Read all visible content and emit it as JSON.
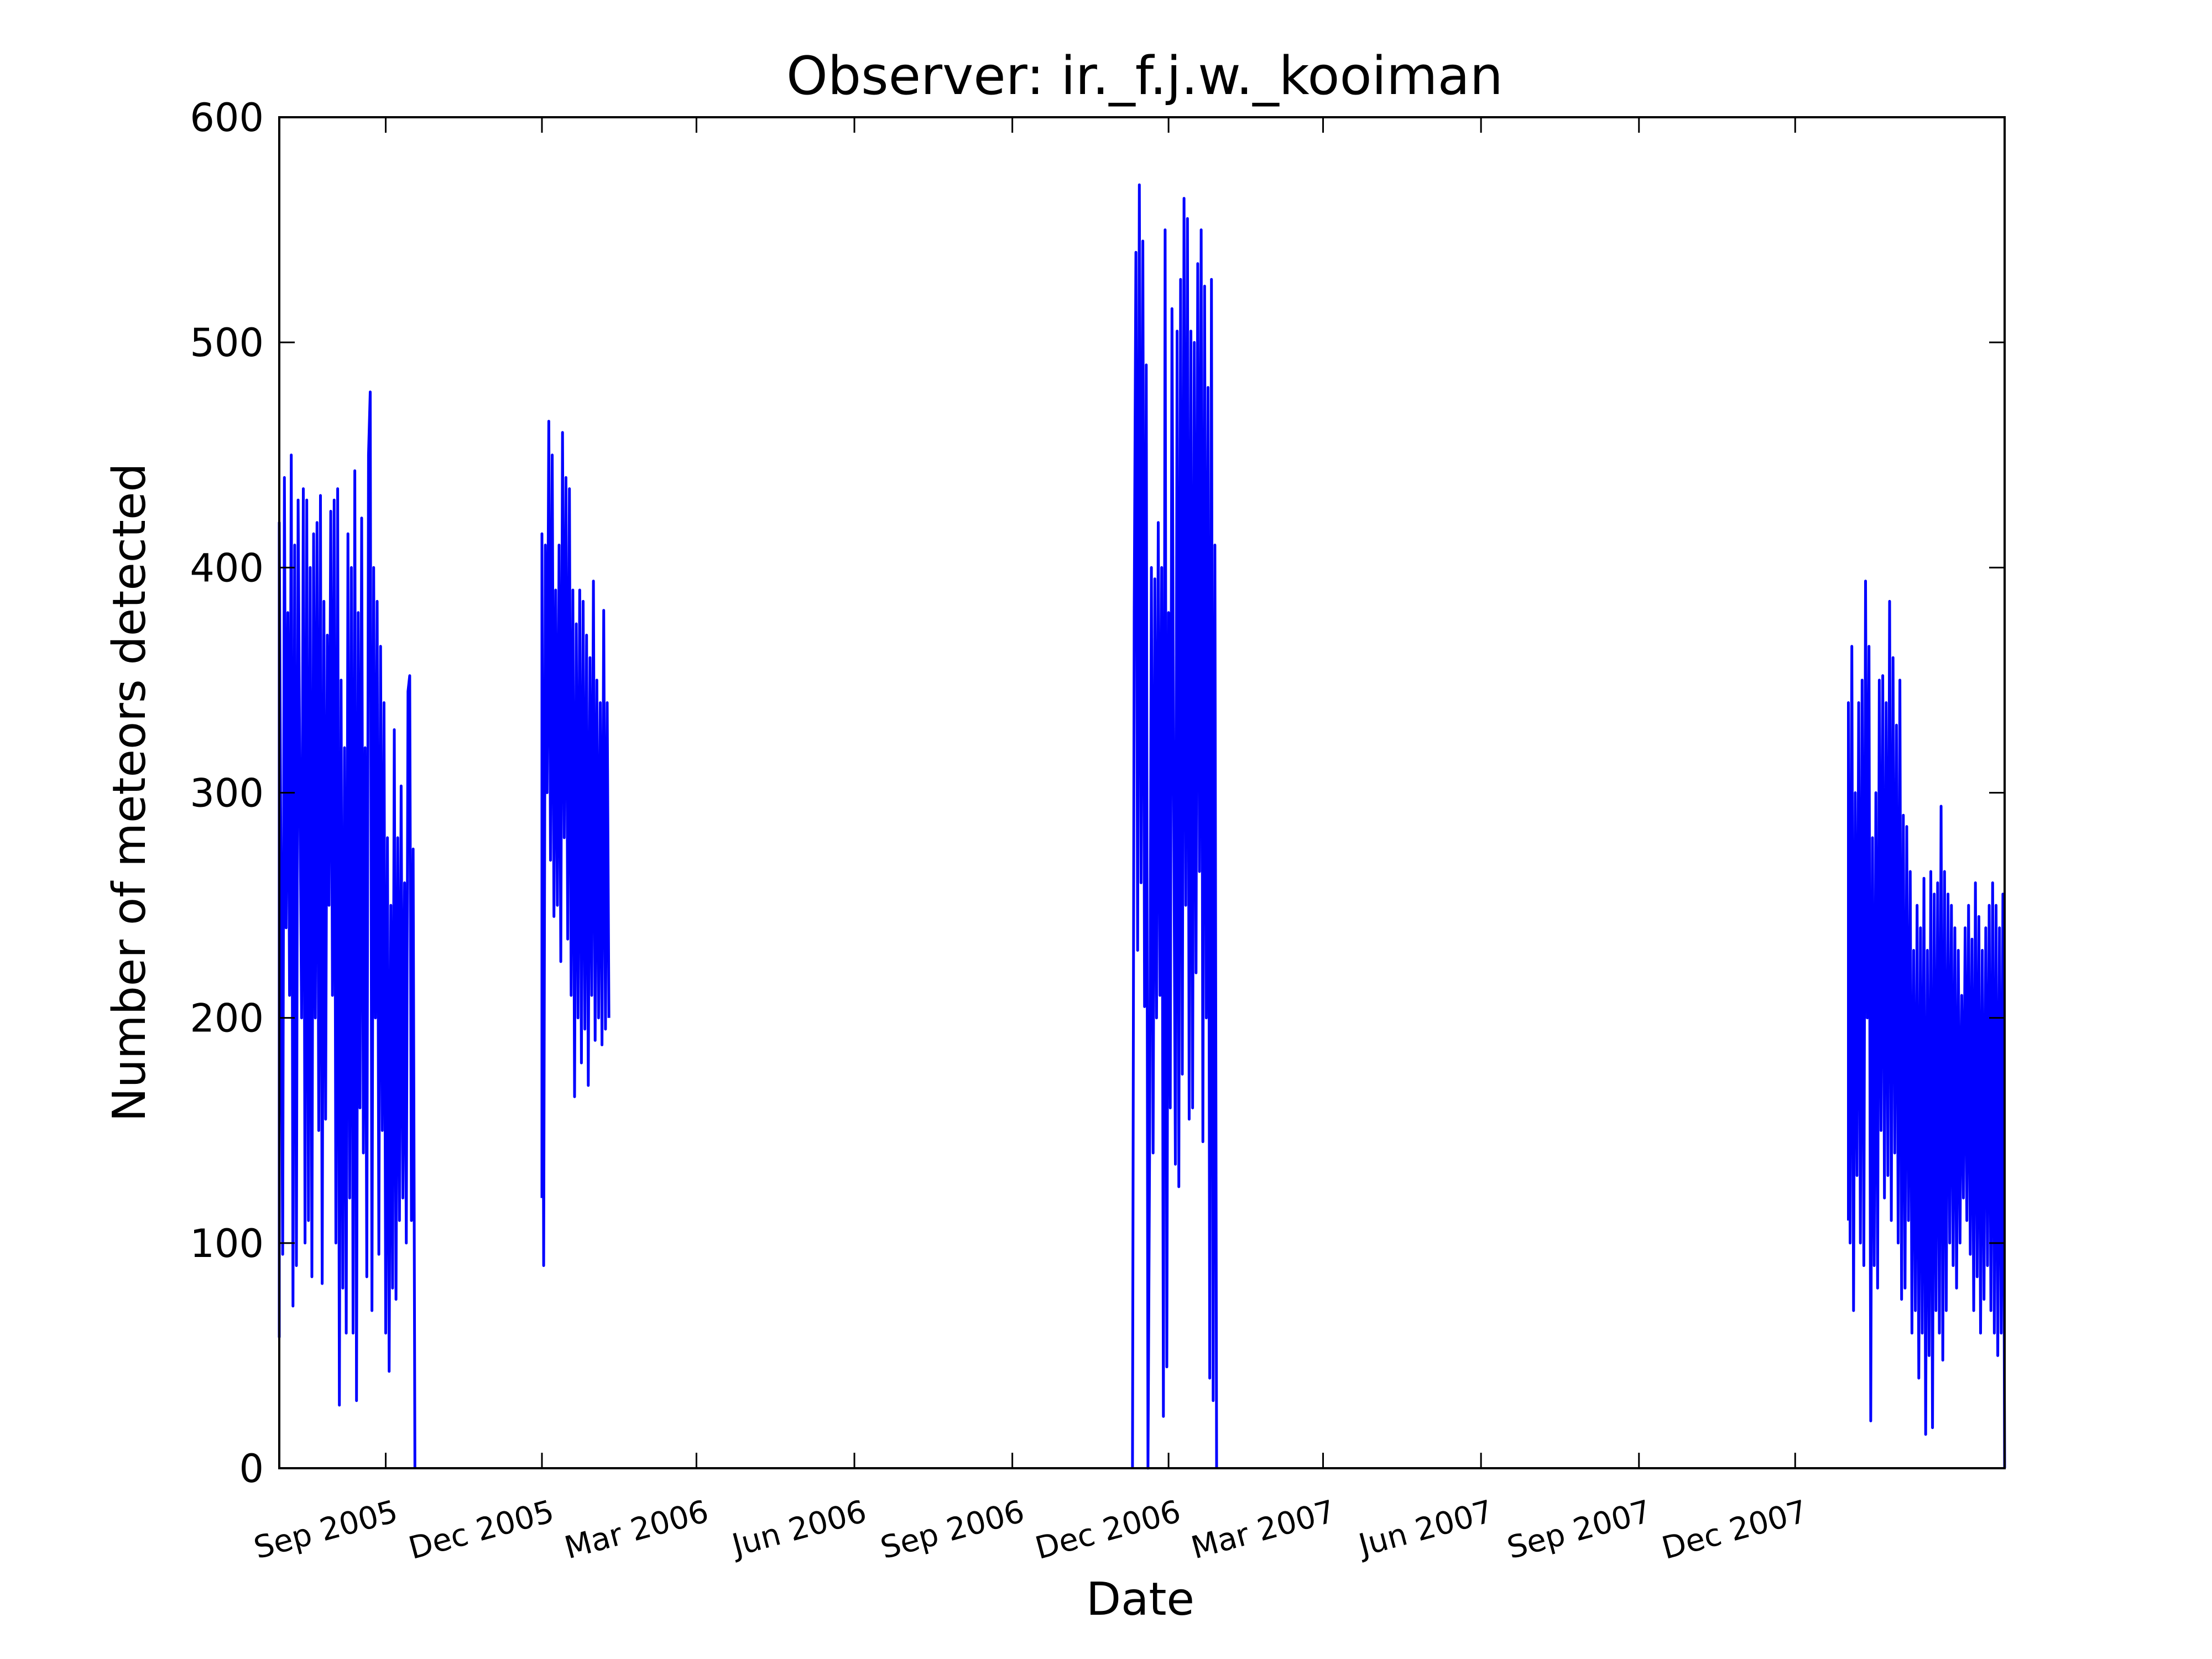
{
  "chart_data": {
    "type": "line",
    "title": "Observer: ir._f.j.w._kooiman",
    "xlabel": "Date",
    "ylabel": "Number of meteors detected",
    "xlim": [
      "2005-07-01",
      "2008-04-01"
    ],
    "ylim": [
      0,
      600
    ],
    "yticks": [
      0,
      100,
      200,
      300,
      400,
      500,
      600
    ],
    "xticks": [
      {
        "date": "2005-09-01",
        "label": "Sep 2005"
      },
      {
        "date": "2005-12-01",
        "label": "Dec 2005"
      },
      {
        "date": "2006-03-01",
        "label": "Mar 2006"
      },
      {
        "date": "2006-06-01",
        "label": "Jun 2006"
      },
      {
        "date": "2006-09-01",
        "label": "Sep 2006"
      },
      {
        "date": "2006-12-01",
        "label": "Dec 2006"
      },
      {
        "date": "2007-03-01",
        "label": "Mar 2007"
      },
      {
        "date": "2007-06-01",
        "label": "Jun 2007"
      },
      {
        "date": "2007-09-01",
        "label": "Sep 2007"
      },
      {
        "date": "2007-12-01",
        "label": "Dec 2007"
      }
    ],
    "grid": false,
    "line_color": "#0000ff",
    "series": [
      {
        "points": [
          [
            "2005-07-01",
            58
          ],
          [
            "2005-07-01",
            420
          ],
          [
            "2005-07-03",
            95
          ],
          [
            "2005-07-04",
            440
          ],
          [
            "2005-07-05",
            240
          ],
          [
            "2005-07-06",
            380
          ],
          [
            "2005-07-07",
            210
          ],
          [
            "2005-07-08",
            450
          ],
          [
            "2005-07-09",
            72
          ],
          [
            "2005-07-10",
            410
          ],
          [
            "2005-07-11",
            90
          ],
          [
            "2005-07-12",
            430
          ],
          [
            "2005-07-13",
            300
          ],
          [
            "2005-07-14",
            200
          ],
          [
            "2005-07-15",
            435
          ],
          [
            "2005-07-16",
            100
          ],
          [
            "2005-07-17",
            430
          ],
          [
            "2005-07-18",
            110
          ],
          [
            "2005-07-19",
            400
          ],
          [
            "2005-07-20",
            85
          ],
          [
            "2005-07-21",
            415
          ],
          [
            "2005-07-22",
            200
          ],
          [
            "2005-07-23",
            420
          ],
          [
            "2005-07-24",
            150
          ],
          [
            "2005-07-25",
            432
          ],
          [
            "2005-07-26",
            82
          ],
          [
            "2005-07-27",
            385
          ],
          [
            "2005-07-28",
            155
          ],
          [
            "2005-07-29",
            370
          ],
          [
            "2005-07-30",
            250
          ],
          [
            "2005-07-31",
            425
          ],
          [
            "2005-08-01",
            210
          ],
          [
            "2005-08-02",
            430
          ],
          [
            "2005-08-03",
            100
          ],
          [
            "2005-08-04",
            435
          ],
          [
            "2005-08-05",
            28
          ],
          [
            "2005-08-06",
            350
          ],
          [
            "2005-08-07",
            80
          ],
          [
            "2005-08-08",
            320
          ],
          [
            "2005-08-09",
            60
          ],
          [
            "2005-08-10",
            415
          ],
          [
            "2005-08-11",
            120
          ],
          [
            "2005-08-12",
            400
          ],
          [
            "2005-08-13",
            60
          ],
          [
            "2005-08-14",
            443
          ],
          [
            "2005-08-15",
            30
          ],
          [
            "2005-08-16",
            380
          ],
          [
            "2005-08-17",
            160
          ],
          [
            "2005-08-18",
            422
          ],
          [
            "2005-08-19",
            140
          ],
          [
            "2005-08-20",
            320
          ],
          [
            "2005-08-21",
            85
          ],
          [
            "2005-08-22",
            450
          ],
          [
            "2005-08-23",
            478
          ],
          [
            "2005-08-24",
            70
          ],
          [
            "2005-08-25",
            400
          ],
          [
            "2005-08-26",
            200
          ],
          [
            "2005-08-27",
            385
          ],
          [
            "2005-08-28",
            95
          ],
          [
            "2005-08-29",
            365
          ],
          [
            "2005-08-30",
            150
          ],
          [
            "2005-08-31",
            340
          ],
          [
            "2005-09-01",
            60
          ],
          [
            "2005-09-02",
            280
          ],
          [
            "2005-09-03",
            43
          ],
          [
            "2005-09-04",
            250
          ],
          [
            "2005-09-05",
            80
          ],
          [
            "2005-09-06",
            328
          ],
          [
            "2005-09-07",
            75
          ],
          [
            "2005-09-08",
            280
          ],
          [
            "2005-09-09",
            110
          ],
          [
            "2005-09-10",
            303
          ],
          [
            "2005-09-11",
            120
          ],
          [
            "2005-09-12",
            260
          ],
          [
            "2005-09-13",
            100
          ],
          [
            "2005-09-14",
            345
          ],
          [
            "2005-09-15",
            352
          ],
          [
            "2005-09-16",
            110
          ],
          [
            "2005-09-17",
            275
          ],
          [
            "2005-09-18",
            0
          ],
          null,
          [
            "2005-12-01",
            120
          ],
          [
            "2005-12-01",
            415
          ],
          [
            "2005-12-02",
            90
          ],
          [
            "2005-12-03",
            410
          ],
          [
            "2005-12-04",
            300
          ],
          [
            "2005-12-05",
            465
          ],
          [
            "2005-12-06",
            270
          ],
          [
            "2005-12-07",
            450
          ],
          [
            "2005-12-08",
            245
          ],
          [
            "2005-12-09",
            390
          ],
          [
            "2005-12-10",
            250
          ],
          [
            "2005-12-11",
            410
          ],
          [
            "2005-12-12",
            225
          ],
          [
            "2005-12-13",
            460
          ],
          [
            "2005-12-14",
            280
          ],
          [
            "2005-12-15",
            440
          ],
          [
            "2005-12-16",
            235
          ],
          [
            "2005-12-17",
            435
          ],
          [
            "2005-12-18",
            210
          ],
          [
            "2005-12-19",
            390
          ],
          [
            "2005-12-20",
            165
          ],
          [
            "2005-12-21",
            375
          ],
          [
            "2005-12-22",
            200
          ],
          [
            "2005-12-23",
            390
          ],
          [
            "2005-12-24",
            180
          ],
          [
            "2005-12-25",
            385
          ],
          [
            "2005-12-26",
            195
          ],
          [
            "2005-12-27",
            370
          ],
          [
            "2005-12-28",
            170
          ],
          [
            "2005-12-29",
            360
          ],
          [
            "2005-12-30",
            210
          ],
          [
            "2005-12-31",
            394
          ],
          [
            "2006-01-01",
            190
          ],
          [
            "2006-01-02",
            350
          ],
          [
            "2006-01-03",
            200
          ],
          [
            "2006-01-04",
            340
          ],
          [
            "2006-01-05",
            188
          ],
          [
            "2006-01-06",
            381
          ],
          [
            "2006-01-07",
            195
          ],
          [
            "2006-01-08",
            340
          ],
          [
            "2006-01-09",
            200
          ],
          null,
          [
            "2006-11-10",
            0
          ],
          [
            "2006-11-11",
            380
          ],
          [
            "2006-11-12",
            540
          ],
          [
            "2006-11-13",
            230
          ],
          [
            "2006-11-14",
            570
          ],
          [
            "2006-11-15",
            260
          ],
          [
            "2006-11-16",
            545
          ],
          [
            "2006-11-17",
            205
          ],
          [
            "2006-11-18",
            490
          ],
          [
            "2006-11-19",
            0
          ],
          [
            "2006-11-20",
            150
          ],
          [
            "2006-11-21",
            400
          ],
          [
            "2006-11-22",
            140
          ],
          [
            "2006-11-23",
            395
          ],
          [
            "2006-11-24",
            200
          ],
          [
            "2006-11-25",
            420
          ],
          [
            "2006-11-26",
            210
          ],
          [
            "2006-11-27",
            400
          ],
          [
            "2006-11-28",
            23
          ],
          [
            "2006-11-29",
            550
          ],
          [
            "2006-11-30",
            45
          ],
          [
            "2006-12-01",
            380
          ],
          [
            "2006-12-02",
            160
          ],
          [
            "2006-12-03",
            515
          ],
          [
            "2006-12-04",
            300
          ],
          [
            "2006-12-05",
            135
          ],
          [
            "2006-12-06",
            505
          ],
          [
            "2006-12-07",
            125
          ],
          [
            "2006-12-08",
            528
          ],
          [
            "2006-12-09",
            175
          ],
          [
            "2006-12-10",
            564
          ],
          [
            "2006-12-11",
            250
          ],
          [
            "2006-12-12",
            555
          ],
          [
            "2006-12-13",
            155
          ],
          [
            "2006-12-14",
            505
          ],
          [
            "2006-12-15",
            160
          ],
          [
            "2006-12-16",
            500
          ],
          [
            "2006-12-17",
            220
          ],
          [
            "2006-12-18",
            535
          ],
          [
            "2006-12-19",
            265
          ],
          [
            "2006-12-20",
            550
          ],
          [
            "2006-12-21",
            145
          ],
          [
            "2006-12-22",
            525
          ],
          [
            "2006-12-23",
            200
          ],
          [
            "2006-12-24",
            480
          ],
          [
            "2006-12-25",
            40
          ],
          [
            "2006-12-26",
            528
          ],
          [
            "2006-12-27",
            30
          ],
          [
            "2006-12-28",
            410
          ],
          [
            "2006-12-29",
            0
          ],
          null,
          [
            "2008-01-01",
            110
          ],
          [
            "2008-01-01",
            340
          ],
          [
            "2008-01-02",
            100
          ],
          [
            "2008-01-03",
            365
          ],
          [
            "2008-01-04",
            70
          ],
          [
            "2008-01-05",
            300
          ],
          [
            "2008-01-06",
            130
          ],
          [
            "2008-01-07",
            340
          ],
          [
            "2008-01-08",
            100
          ],
          [
            "2008-01-09",
            350
          ],
          [
            "2008-01-10",
            90
          ],
          [
            "2008-01-11",
            394
          ],
          [
            "2008-01-12",
            200
          ],
          [
            "2008-01-13",
            365
          ],
          [
            "2008-01-14",
            21
          ],
          [
            "2008-01-15",
            280
          ],
          [
            "2008-01-16",
            90
          ],
          [
            "2008-01-17",
            300
          ],
          [
            "2008-01-18",
            80
          ],
          [
            "2008-01-19",
            350
          ],
          [
            "2008-01-20",
            150
          ],
          [
            "2008-01-21",
            352
          ],
          [
            "2008-01-22",
            120
          ],
          [
            "2008-01-23",
            340
          ],
          [
            "2008-01-24",
            130
          ],
          [
            "2008-01-25",
            385
          ],
          [
            "2008-01-26",
            110
          ],
          [
            "2008-01-27",
            360
          ],
          [
            "2008-01-28",
            140
          ],
          [
            "2008-01-29",
            330
          ],
          [
            "2008-01-30",
            100
          ],
          [
            "2008-01-31",
            350
          ],
          [
            "2008-02-01",
            75
          ],
          [
            "2008-02-02",
            290
          ],
          [
            "2008-02-03",
            80
          ],
          [
            "2008-02-04",
            285
          ],
          [
            "2008-02-05",
            110
          ],
          [
            "2008-02-06",
            265
          ],
          [
            "2008-02-07",
            60
          ],
          [
            "2008-02-08",
            230
          ],
          [
            "2008-02-09",
            70
          ],
          [
            "2008-02-10",
            250
          ],
          [
            "2008-02-11",
            40
          ],
          [
            "2008-02-12",
            240
          ],
          [
            "2008-02-13",
            60
          ],
          [
            "2008-02-14",
            262
          ],
          [
            "2008-02-15",
            15
          ],
          [
            "2008-02-16",
            230
          ],
          [
            "2008-02-17",
            50
          ],
          [
            "2008-02-18",
            265
          ],
          [
            "2008-02-19",
            18
          ],
          [
            "2008-02-20",
            255
          ],
          [
            "2008-02-21",
            70
          ],
          [
            "2008-02-22",
            260
          ],
          [
            "2008-02-23",
            60
          ],
          [
            "2008-02-24",
            294
          ],
          [
            "2008-02-25",
            48
          ],
          [
            "2008-02-26",
            265
          ],
          [
            "2008-02-27",
            70
          ],
          [
            "2008-02-28",
            255
          ],
          [
            "2008-02-29",
            100
          ],
          [
            "2008-03-01",
            250
          ],
          [
            "2008-03-02",
            90
          ],
          [
            "2008-03-03",
            240
          ],
          [
            "2008-03-04",
            80
          ],
          [
            "2008-03-05",
            230
          ],
          [
            "2008-03-06",
            100
          ],
          [
            "2008-03-07",
            210
          ],
          [
            "2008-03-08",
            120
          ],
          [
            "2008-03-09",
            240
          ],
          [
            "2008-03-10",
            110
          ],
          [
            "2008-03-11",
            250
          ],
          [
            "2008-03-12",
            95
          ],
          [
            "2008-03-13",
            235
          ],
          [
            "2008-03-14",
            70
          ],
          [
            "2008-03-15",
            260
          ],
          [
            "2008-03-16",
            85
          ],
          [
            "2008-03-17",
            245
          ],
          [
            "2008-03-18",
            60
          ],
          [
            "2008-03-19",
            230
          ],
          [
            "2008-03-20",
            75
          ],
          [
            "2008-03-21",
            240
          ],
          [
            "2008-03-22",
            90
          ],
          [
            "2008-03-23",
            250
          ],
          [
            "2008-03-24",
            70
          ],
          [
            "2008-03-25",
            260
          ],
          [
            "2008-03-26",
            60
          ],
          [
            "2008-03-27",
            250
          ],
          [
            "2008-03-28",
            50
          ],
          [
            "2008-03-29",
            240
          ],
          [
            "2008-03-30",
            60
          ],
          [
            "2008-03-31",
            255
          ],
          [
            "2008-04-01",
            0
          ]
        ]
      }
    ]
  }
}
